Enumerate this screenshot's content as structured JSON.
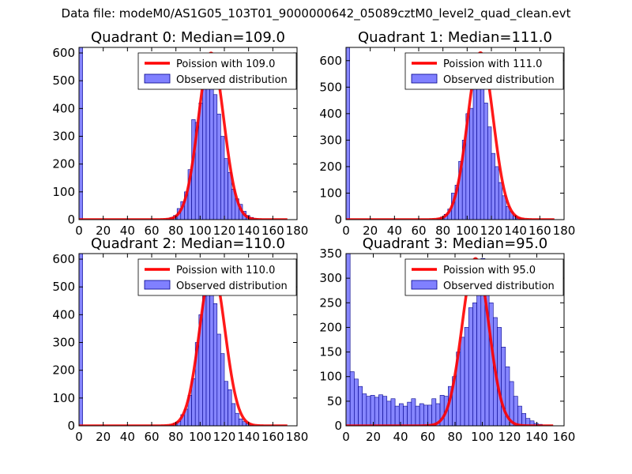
{
  "figure_title": "Data file: modeM0/AS1G05_103T01_9000000642_05089cztM0_level2_quad_clean.evt",
  "colors": {
    "line": "#ff0000",
    "bar_fill": "#8080ff",
    "bar_edge": "#00008b",
    "axes": "#000000"
  },
  "chart_data": [
    {
      "type": "bar",
      "title": "Quadrant 0: Median=109.0",
      "median": 109.0,
      "peak_height": 600,
      "xlim": [
        0,
        180
      ],
      "ylim": [
        0,
        620
      ],
      "xticks": [
        0,
        20,
        40,
        60,
        80,
        100,
        120,
        140,
        160,
        180
      ],
      "yticks": [
        0,
        100,
        200,
        300,
        400,
        500,
        600
      ],
      "legend_position": "upper-right",
      "legend": [
        "Poission with 109.0",
        "Observed distribution"
      ],
      "bins": [
        {
          "x": 0,
          "h": 620
        },
        {
          "x": 72,
          "h": 3
        },
        {
          "x": 75,
          "h": 8
        },
        {
          "x": 78,
          "h": 15
        },
        {
          "x": 81,
          "h": 40
        },
        {
          "x": 84,
          "h": 65
        },
        {
          "x": 87,
          "h": 100
        },
        {
          "x": 90,
          "h": 180
        },
        {
          "x": 93,
          "h": 360
        },
        {
          "x": 96,
          "h": 350
        },
        {
          "x": 99,
          "h": 420
        },
        {
          "x": 102,
          "h": 510
        },
        {
          "x": 105,
          "h": 580
        },
        {
          "x": 108,
          "h": 530
        },
        {
          "x": 111,
          "h": 450
        },
        {
          "x": 114,
          "h": 380
        },
        {
          "x": 117,
          "h": 300
        },
        {
          "x": 120,
          "h": 220
        },
        {
          "x": 123,
          "h": 170
        },
        {
          "x": 126,
          "h": 110
        },
        {
          "x": 129,
          "h": 75
        },
        {
          "x": 132,
          "h": 55
        },
        {
          "x": 135,
          "h": 30
        },
        {
          "x": 138,
          "h": 15
        },
        {
          "x": 141,
          "h": 8
        },
        {
          "x": 144,
          "h": 3
        }
      ]
    },
    {
      "type": "bar",
      "title": "Quadrant 1: Median=111.0",
      "median": 111.0,
      "peak_height": 630,
      "xlim": [
        0,
        180
      ],
      "ylim": [
        0,
        650
      ],
      "xticks": [
        0,
        20,
        40,
        60,
        80,
        100,
        120,
        140,
        160,
        180
      ],
      "yticks": [
        0,
        100,
        200,
        300,
        400,
        500,
        600
      ],
      "legend_position": "upper-right",
      "legend": [
        "Poission with 111.0",
        "Observed distribution"
      ],
      "bins": [
        {
          "x": 0,
          "h": 650
        },
        {
          "x": 75,
          "h": 3
        },
        {
          "x": 78,
          "h": 10
        },
        {
          "x": 81,
          "h": 20
        },
        {
          "x": 84,
          "h": 40
        },
        {
          "x": 87,
          "h": 100
        },
        {
          "x": 90,
          "h": 130
        },
        {
          "x": 93,
          "h": 220
        },
        {
          "x": 96,
          "h": 300
        },
        {
          "x": 99,
          "h": 400
        },
        {
          "x": 102,
          "h": 420
        },
        {
          "x": 105,
          "h": 500
        },
        {
          "x": 108,
          "h": 590
        },
        {
          "x": 111,
          "h": 590
        },
        {
          "x": 114,
          "h": 440
        },
        {
          "x": 117,
          "h": 350
        },
        {
          "x": 120,
          "h": 250
        },
        {
          "x": 123,
          "h": 200
        },
        {
          "x": 126,
          "h": 140
        },
        {
          "x": 129,
          "h": 90
        },
        {
          "x": 132,
          "h": 50
        },
        {
          "x": 135,
          "h": 30
        },
        {
          "x": 138,
          "h": 15
        },
        {
          "x": 141,
          "h": 8
        },
        {
          "x": 144,
          "h": 3
        }
      ]
    },
    {
      "type": "bar",
      "title": "Quadrant 2: Median=110.0",
      "median": 110.0,
      "peak_height": 570,
      "xlim": [
        0,
        180
      ],
      "ylim": [
        0,
        620
      ],
      "xticks": [
        0,
        20,
        40,
        60,
        80,
        100,
        120,
        140,
        160,
        180
      ],
      "yticks": [
        0,
        100,
        200,
        300,
        400,
        500,
        600
      ],
      "legend_position": "upper-right",
      "legend": [
        "Poission with 110.0",
        "Observed distribution"
      ],
      "bins": [
        {
          "x": 0,
          "h": 620
        },
        {
          "x": 75,
          "h": 3
        },
        {
          "x": 78,
          "h": 10
        },
        {
          "x": 81,
          "h": 15
        },
        {
          "x": 84,
          "h": 40
        },
        {
          "x": 87,
          "h": 60
        },
        {
          "x": 90,
          "h": 110
        },
        {
          "x": 93,
          "h": 170
        },
        {
          "x": 96,
          "h": 300
        },
        {
          "x": 99,
          "h": 400
        },
        {
          "x": 102,
          "h": 500
        },
        {
          "x": 105,
          "h": 570
        },
        {
          "x": 108,
          "h": 520
        },
        {
          "x": 111,
          "h": 440
        },
        {
          "x": 114,
          "h": 330
        },
        {
          "x": 117,
          "h": 260
        },
        {
          "x": 120,
          "h": 160
        },
        {
          "x": 123,
          "h": 130
        },
        {
          "x": 126,
          "h": 80
        },
        {
          "x": 129,
          "h": 45
        },
        {
          "x": 132,
          "h": 25
        },
        {
          "x": 135,
          "h": 15
        },
        {
          "x": 138,
          "h": 8
        },
        {
          "x": 141,
          "h": 3
        }
      ]
    },
    {
      "type": "bar",
      "title": "Quadrant 3: Median=95.0",
      "median": 95.0,
      "peak_height": 340,
      "xlim": [
        0,
        160
      ],
      "ylim": [
        0,
        350
      ],
      "xticks": [
        0,
        20,
        40,
        60,
        80,
        100,
        120,
        140,
        160
      ],
      "yticks": [
        0,
        50,
        100,
        150,
        200,
        250,
        300,
        350
      ],
      "legend_position": "upper-right",
      "legend": [
        "Poission with 95.0",
        "Observed distribution"
      ],
      "bins": [
        {
          "x": 0,
          "h": 350
        },
        {
          "x": 3,
          "h": 110
        },
        {
          "x": 6,
          "h": 95
        },
        {
          "x": 9,
          "h": 80
        },
        {
          "x": 12,
          "h": 65
        },
        {
          "x": 15,
          "h": 60
        },
        {
          "x": 18,
          "h": 62
        },
        {
          "x": 21,
          "h": 58
        },
        {
          "x": 24,
          "h": 63
        },
        {
          "x": 27,
          "h": 60
        },
        {
          "x": 30,
          "h": 50
        },
        {
          "x": 33,
          "h": 55
        },
        {
          "x": 36,
          "h": 40
        },
        {
          "x": 39,
          "h": 45
        },
        {
          "x": 42,
          "h": 40
        },
        {
          "x": 45,
          "h": 48
        },
        {
          "x": 48,
          "h": 55
        },
        {
          "x": 51,
          "h": 40
        },
        {
          "x": 54,
          "h": 45
        },
        {
          "x": 57,
          "h": 42
        },
        {
          "x": 60,
          "h": 42
        },
        {
          "x": 63,
          "h": 55
        },
        {
          "x": 66,
          "h": 45
        },
        {
          "x": 69,
          "h": 62
        },
        {
          "x": 72,
          "h": 60
        },
        {
          "x": 75,
          "h": 80
        },
        {
          "x": 78,
          "h": 100
        },
        {
          "x": 81,
          "h": 150
        },
        {
          "x": 84,
          "h": 180
        },
        {
          "x": 87,
          "h": 200
        },
        {
          "x": 90,
          "h": 240
        },
        {
          "x": 93,
          "h": 250
        },
        {
          "x": 96,
          "h": 310
        },
        {
          "x": 99,
          "h": 340
        },
        {
          "x": 102,
          "h": 280
        },
        {
          "x": 105,
          "h": 250
        },
        {
          "x": 108,
          "h": 220
        },
        {
          "x": 111,
          "h": 200
        },
        {
          "x": 114,
          "h": 160
        },
        {
          "x": 117,
          "h": 120
        },
        {
          "x": 120,
          "h": 90
        },
        {
          "x": 123,
          "h": 60
        },
        {
          "x": 126,
          "h": 40
        },
        {
          "x": 129,
          "h": 25
        },
        {
          "x": 132,
          "h": 15
        },
        {
          "x": 135,
          "h": 10
        },
        {
          "x": 138,
          "h": 5
        },
        {
          "x": 141,
          "h": 3
        }
      ]
    }
  ]
}
